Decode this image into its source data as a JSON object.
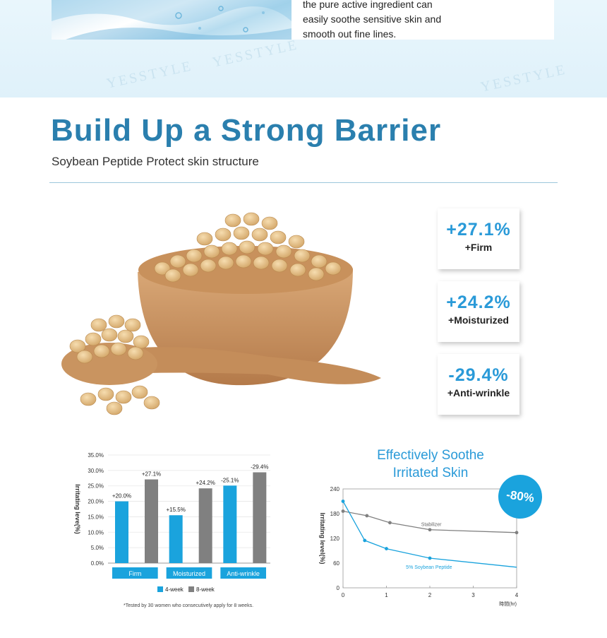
{
  "top_section": {
    "lines": [
      "the pure active ingredient can",
      "easily soothe sensitive skin and",
      "smooth out fine lines."
    ],
    "watermark": "YESSTYLE"
  },
  "header": {
    "title": "Build Up a Strong Barrier",
    "subtitle": "Soybean Peptide Protect skin structure"
  },
  "stats": [
    {
      "value": "+27.1%",
      "label": "+Firm"
    },
    {
      "value": "+24.2%",
      "label": "+Moisturized"
    },
    {
      "value": "-29.4%",
      "label": "+Anti-wrinkle"
    }
  ],
  "colors": {
    "accent": "#2a9ad8",
    "title": "#2a7fae",
    "bar_blue": "#1aa3dd",
    "bar_gray": "#808080",
    "line_gray": "#808080"
  },
  "chart_data": [
    {
      "type": "bar",
      "ylabel": "Irritating leve(%)",
      "ylim": [
        0,
        35
      ],
      "yticks": [
        "0.0%",
        "5.0%",
        "10.0%",
        "15.0%",
        "20.0%",
        "25.0%",
        "30.0%",
        "35.0%"
      ],
      "categories": [
        "Firm",
        "Moisturized",
        "Anti-wrinkle"
      ],
      "series": [
        {
          "name": "4-week",
          "values": [
            20.0,
            15.5,
            25.1
          ],
          "labels": [
            "+20.0%",
            "+15.5%",
            "-25.1%"
          ],
          "color": "#1aa3dd"
        },
        {
          "name": "8-week",
          "values": [
            27.1,
            24.2,
            29.4
          ],
          "labels": [
            "+27.1%",
            "+24.2%",
            "-29.4%"
          ],
          "color": "#808080"
        }
      ],
      "legend": "bottom",
      "footnote": "*Tested by 30 women who consecutively apply for 8 weeks."
    },
    {
      "type": "line",
      "title": [
        "Effectively Soothe",
        "Irritated Skin"
      ],
      "ylabel": "Irritating level(%)",
      "xlabel": "時間(hr)",
      "xlim": [
        0,
        4
      ],
      "ylim": [
        0,
        240
      ],
      "xticks": [
        0,
        1,
        2,
        3,
        4
      ],
      "yticks": [
        0,
        60,
        120,
        180,
        240
      ],
      "badge": "-80%",
      "series": [
        {
          "name": "Stabilizer",
          "x": [
            0,
            0.55,
            1.08,
            2.0,
            4.0
          ],
          "y": [
            186,
            175,
            158,
            141,
            134
          ],
          "color": "#808080"
        },
        {
          "name": "5% Soybean Peptide",
          "x": [
            0,
            0.5,
            1.0,
            2.0,
            4.0
          ],
          "y": [
            210,
            115,
            95,
            72,
            50
          ],
          "color": "#1aa3dd"
        }
      ]
    }
  ]
}
